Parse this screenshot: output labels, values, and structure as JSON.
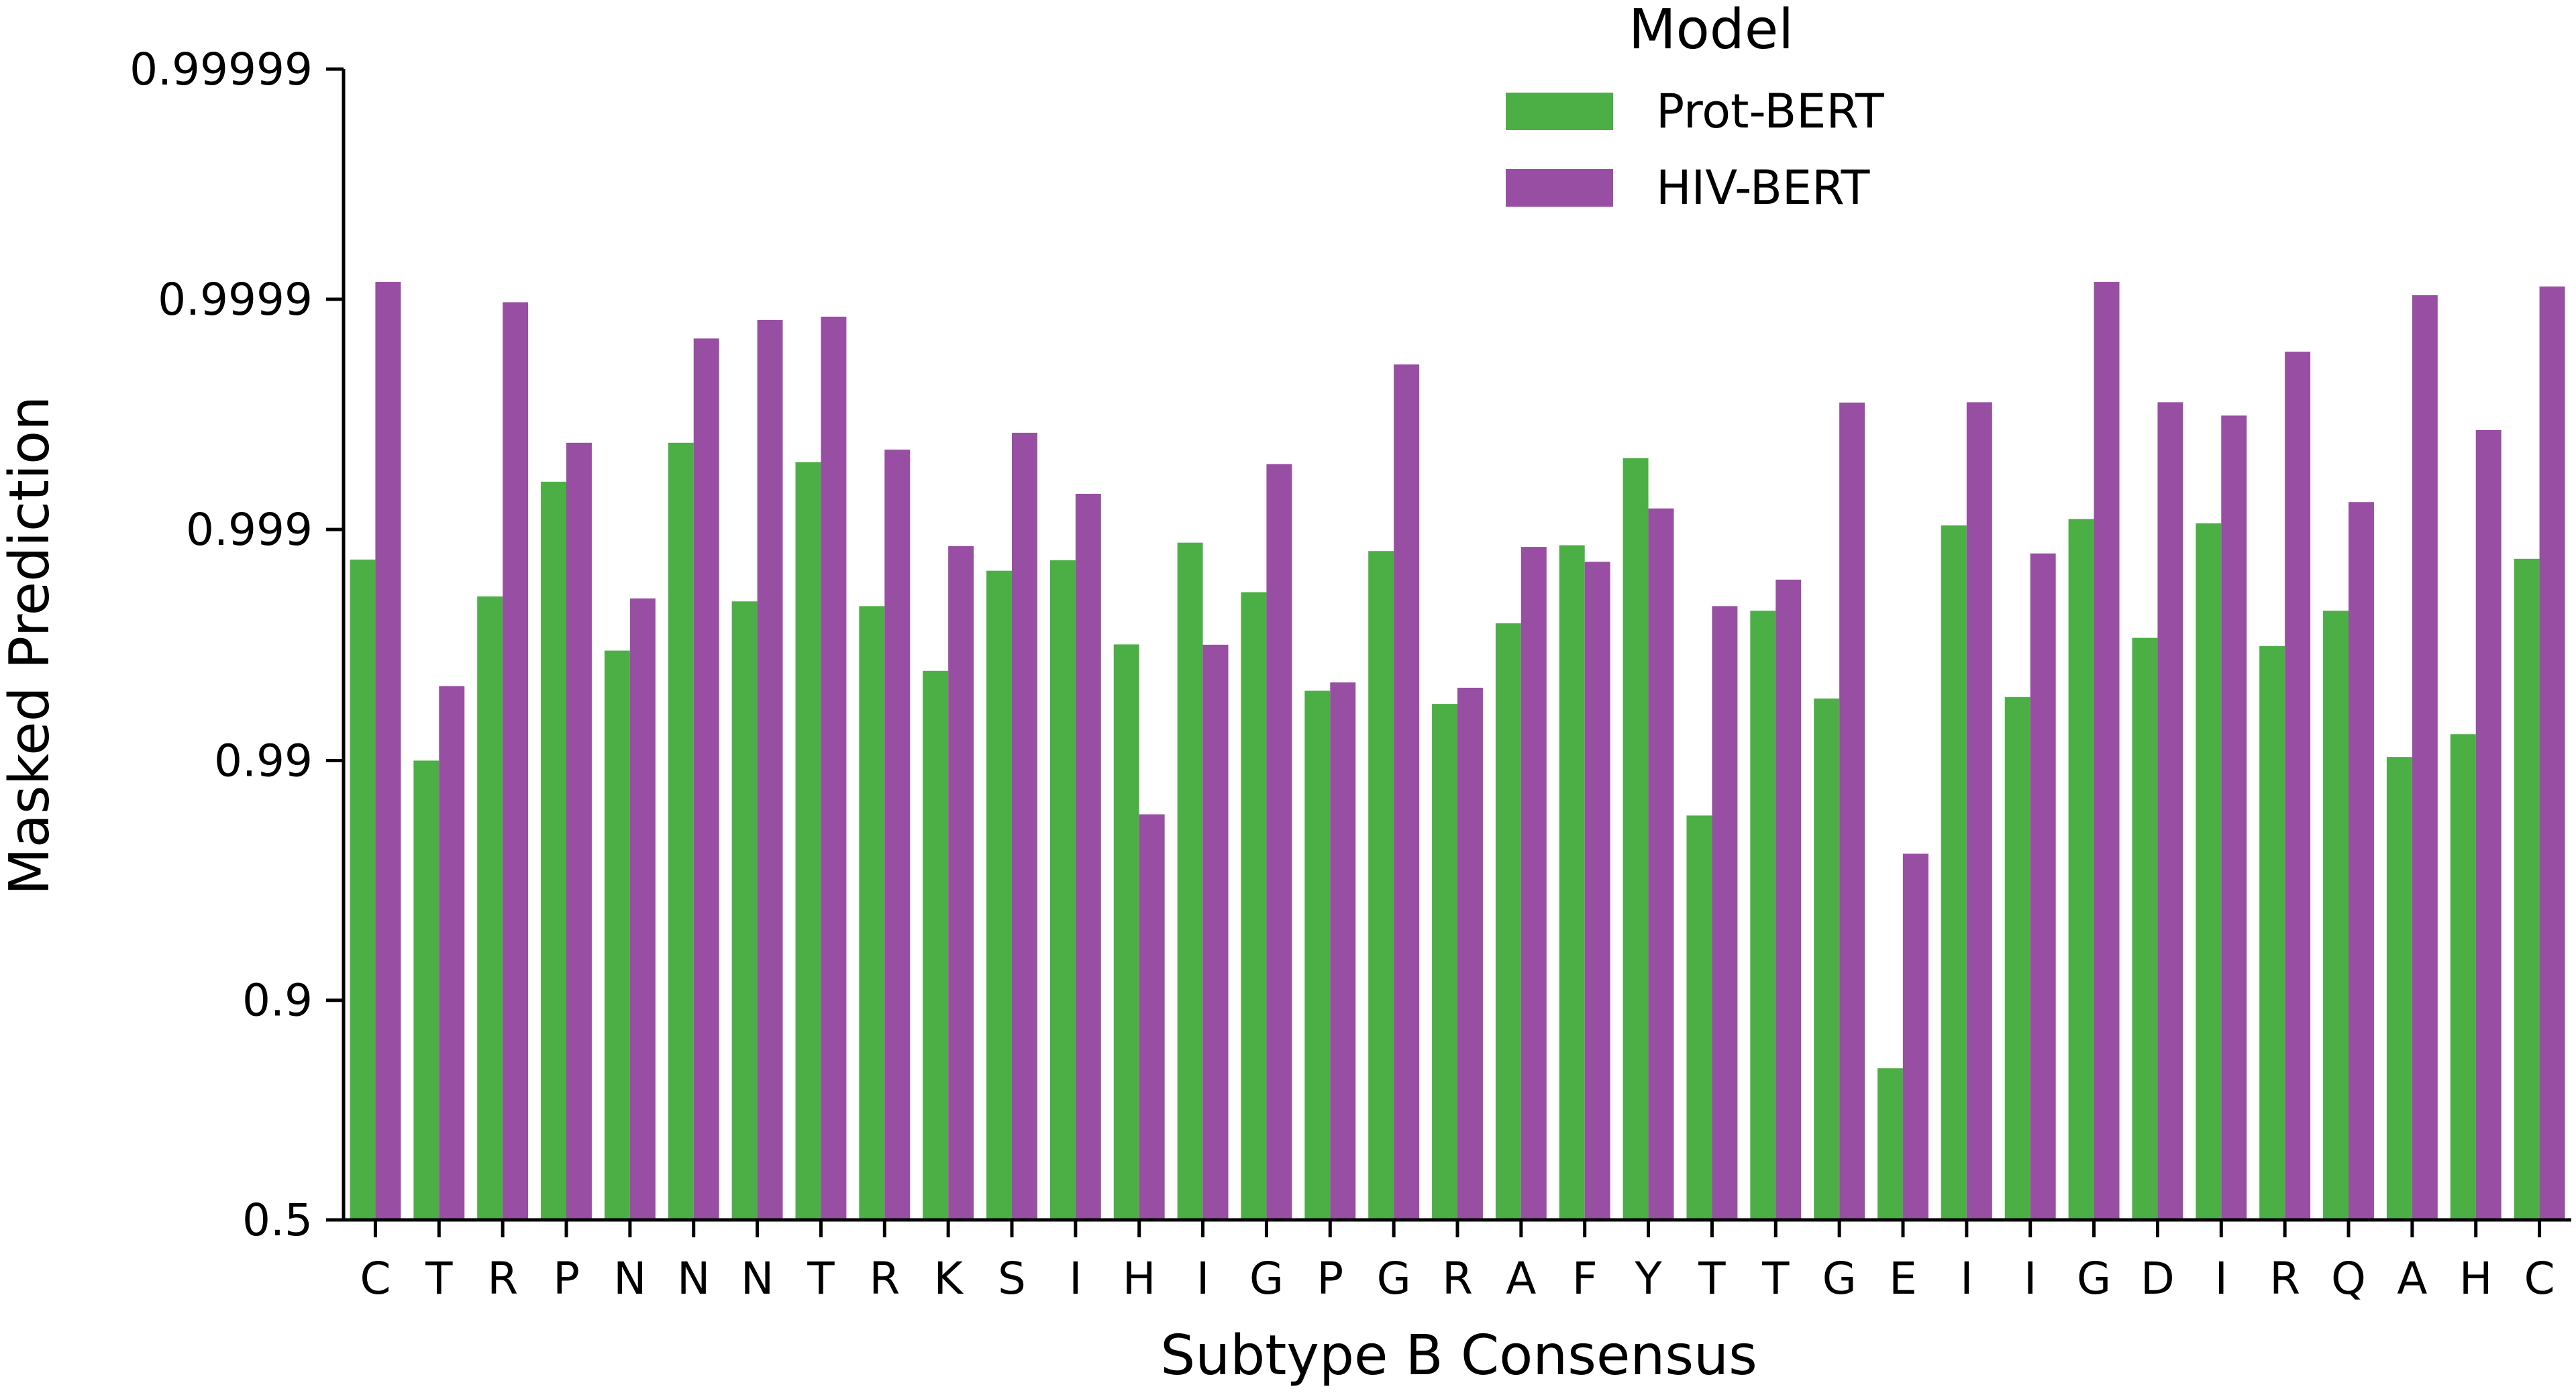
{
  "chart_data": {
    "type": "bar",
    "title": "",
    "xlabel": "Subtype B Consensus",
    "ylabel": "Masked Prediction",
    "y_scale": "logit",
    "y_ticks": [
      0.5,
      0.9,
      0.99,
      0.999,
      0.9999,
      0.99999
    ],
    "y_tick_labels": [
      "0.5",
      "0.9",
      "0.99",
      "0.999",
      "0.9999",
      "0.99999"
    ],
    "ylim": [
      0.5,
      0.99999
    ],
    "categories": [
      "C",
      "T",
      "R",
      "P",
      "N",
      "N",
      "N",
      "T",
      "R",
      "K",
      "S",
      "I",
      "H",
      "I",
      "G",
      "P",
      "G",
      "R",
      "A",
      "F",
      "Y",
      "T",
      "T",
      "G",
      "E",
      "I",
      "I",
      "G",
      "D",
      "I",
      "R",
      "Q",
      "A",
      "H",
      "C"
    ],
    "legend": {
      "title": "Model",
      "position": "top-right"
    },
    "series": [
      {
        "name": "Prot-BERT",
        "color": "#4caf45",
        "values": [
          0.99865,
          0.99,
          0.99805,
          0.99938,
          0.99665,
          0.99958,
          0.99795,
          0.99949,
          0.99785,
          0.9959,
          0.99849,
          0.99864,
          0.99685,
          0.99886,
          0.99813,
          0.995,
          0.99876,
          0.9943,
          0.99745,
          0.99883,
          0.99951,
          0.9828,
          0.99775,
          0.9946,
          0.82,
          0.99904,
          0.99468,
          0.9991,
          0.99705,
          0.99906,
          0.9968,
          0.99775,
          0.99035,
          0.9923,
          0.99866
        ]
      },
      {
        "name": "HIV-BERT",
        "color": "#984ea3",
        "values": [
          0.999916,
          0.99523,
          0.999897,
          0.99958,
          0.99801,
          0.999852,
          0.999877,
          0.999881,
          0.99955,
          0.99882,
          0.99962,
          0.9993,
          0.983,
          0.99684,
          0.99948,
          0.9954,
          0.999808,
          0.99515,
          0.99881,
          0.99862,
          0.99919,
          0.99785,
          0.99835,
          0.999719,
          0.975,
          0.99972,
          0.99873,
          0.999916,
          0.99972,
          0.99968,
          0.999831,
          0.99924,
          0.999904,
          0.99963,
          0.999912
        ]
      }
    ]
  }
}
